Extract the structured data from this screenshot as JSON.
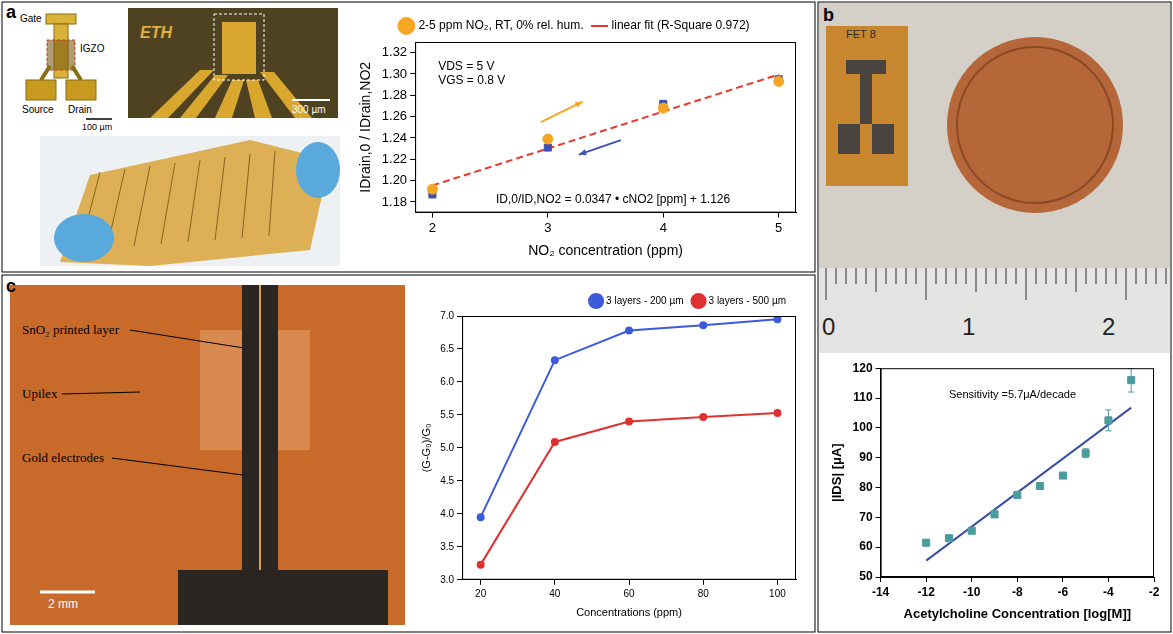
{
  "chart_data": [
    {
      "type": "scatter",
      "x_label": "NO₂ concentration (ppm)",
      "y_label": "IDrain,0 / IDrain,NO2",
      "xlim": [
        1.85,
        5.15
      ],
      "xticks": [
        2,
        3,
        4,
        5
      ],
      "ylim": [
        1.17,
        1.33
      ],
      "yticks": [
        1.18,
        {
          "value": 1.2,
          "label": "1.20"
        },
        1.22,
        1.24,
        1.26,
        1.28,
        {
          "value": 1.3,
          "label": "1.30"
        },
        1.32
      ],
      "grid": false,
      "legend": "top",
      "series": [
        {
          "name": "2-5 ppm NO₂, RT, 0% rel. hum.",
          "color": "#f5a623",
          "marker": "circle",
          "line_style": "none",
          "x": [
            2,
            3,
            4,
            5
          ],
          "values": [
            1.192,
            1.239,
            1.268,
            1.293
          ]
        },
        {
          "color": "#3f4fb5",
          "marker": "square",
          "line_style": "none",
          "x": [
            2,
            3,
            4,
            5
          ],
          "values": [
            1.187,
            1.231,
            1.272,
            1.295
          ]
        },
        {
          "name": "linear fit (R-Square 0.972)",
          "color": "#e8392b",
          "marker": "none",
          "line_style": "dashed",
          "x": [
            2,
            5
          ],
          "values": [
            1.1954,
            1.2995
          ]
        }
      ],
      "annotations": [
        {
          "text": "VDS = 5 V",
          "x": 2.05,
          "y": 1.307
        },
        {
          "text": "VGS = 0.8 V",
          "x": 2.05,
          "y": 1.294
        },
        {
          "text": "ID,0/ID,NO2 = 0.0347 • cNO2 [ppm] + 1.126",
          "x": 2.55,
          "y": 1.182
        }
      ]
    },
    {
      "type": "scatter",
      "x_label": "Acetylcholine Concentration [log[M]]",
      "y_label": "|IDS| [μA]",
      "xlim": [
        -14,
        -2
      ],
      "xticks": [
        -14,
        -12,
        -10,
        -8,
        -6,
        -4,
        -2
      ],
      "ylim": [
        50,
        120
      ],
      "yticks": [
        50,
        60,
        70,
        80,
        90,
        100,
        110,
        120
      ],
      "grid": false,
      "series": [
        {
          "color": "#4a9c9e",
          "marker": "square",
          "line_style": "none",
          "x": [
            -12,
            -11,
            -10,
            -9,
            -8,
            -7,
            -6,
            -5,
            -4,
            -3
          ],
          "values": [
            61.5,
            63,
            65.5,
            71,
            77.5,
            80.5,
            84,
            91.5,
            102.5,
            116
          ],
          "errors": [
            0.8,
            0.6,
            0.8,
            1.0,
            0.6,
            0.6,
            0.5,
            1.5,
            3.5,
            4.0
          ]
        },
        {
          "color": "#3c4fa8",
          "marker": "none",
          "line_style": "solid",
          "x": [
            -12,
            -3
          ],
          "values": [
            55.5,
            106.8
          ]
        }
      ],
      "annotations": [
        {
          "text": "Sensitivity =5.7μA/decade",
          "x": -11,
          "y": 111
        }
      ]
    },
    {
      "type": "scatter",
      "x_label": "Concentrations (ppm)",
      "y_label": "(G-G₀)/G₀",
      "xlim": [
        15,
        105
      ],
      "xticks": [
        20,
        40,
        60,
        80,
        100
      ],
      "ylim": [
        3,
        7
      ],
      "yticks": [
        {
          "value": 3,
          "label": "3.0"
        },
        3.5,
        {
          "value": 4,
          "label": "4.0"
        },
        4.5,
        {
          "value": 5,
          "label": "5.0"
        },
        5.5,
        {
          "value": 6,
          "label": "6.0"
        },
        6.5,
        {
          "value": 7,
          "label": "7.0"
        }
      ],
      "grid": false,
      "legend": "top-right",
      "series": [
        {
          "name": "3 layers - 200 µm",
          "color": "#3b5bdb",
          "marker": "circle",
          "line_style": "solid",
          "x": [
            20,
            40,
            60,
            80,
            100
          ],
          "values": [
            3.95,
            6.33,
            6.78,
            6.86,
            6.95
          ]
        },
        {
          "name": "3 layers - 500 µm",
          "color": "#e03131",
          "marker": "circle",
          "line_style": "solid",
          "x": [
            20,
            40,
            60,
            80,
            100
          ],
          "values": [
            3.23,
            5.09,
            5.4,
            5.47,
            5.53
          ]
        }
      ]
    }
  ],
  "panels": [
    {
      "letter": "a",
      "photo_texts": {
        "schematic": [
          "Gate",
          "IGZO",
          "Source",
          "Drain"
        ],
        "scale_bars": [
          "100 µm",
          "300 µm"
        ],
        "logo": "ETH"
      }
    },
    {
      "letter": "b",
      "photo_texts": {
        "sample": "FET 8",
        "ruler": [
          "0",
          "1",
          "2"
        ]
      }
    },
    {
      "letter": "c",
      "photo_texts": {
        "labels": [
          "SnO₂ printed layer",
          "Upilex",
          "Gold electrodes"
        ],
        "scale_bar": "2 mm"
      }
    }
  ]
}
